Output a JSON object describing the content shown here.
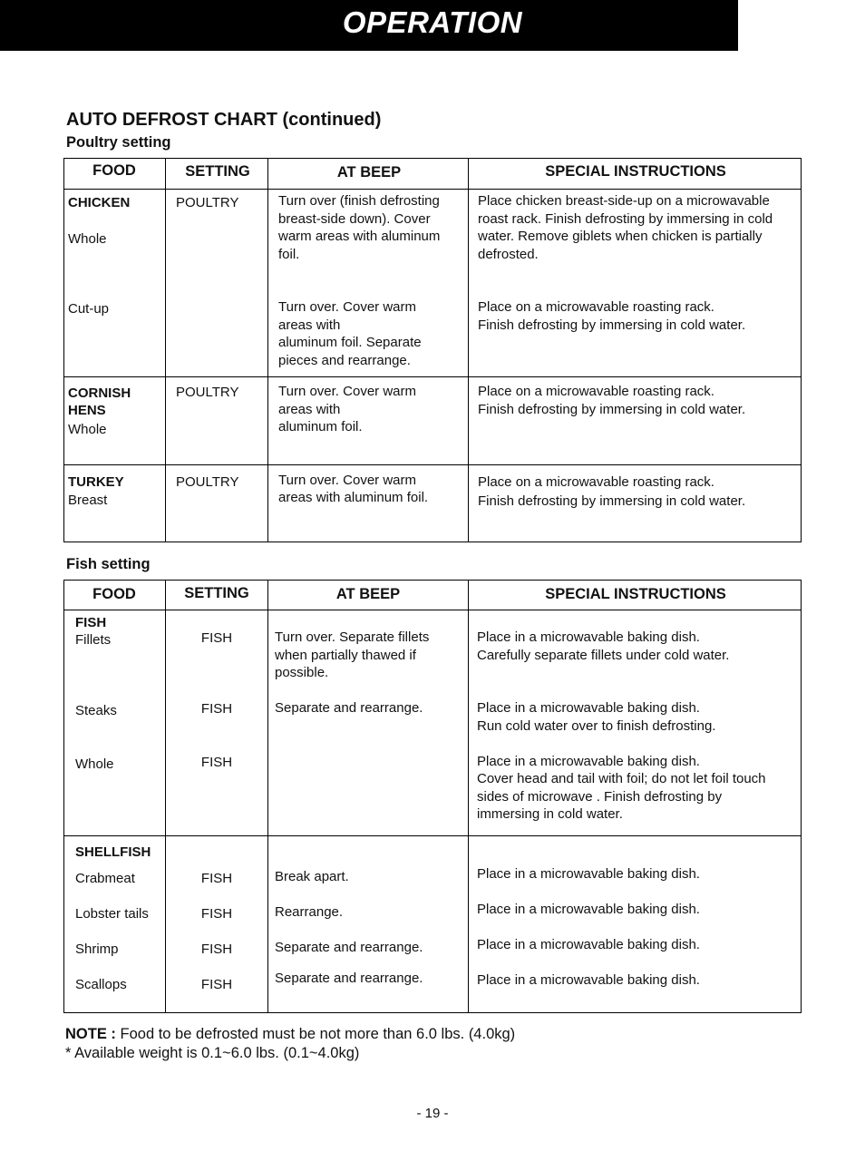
{
  "header": {
    "title": "OPERATION"
  },
  "section_title": "AUTO DEFROST CHART (continued)",
  "poultry": {
    "subtitle": "Poultry setting",
    "columns": [
      "FOOD",
      "SETTING",
      "AT BEEP",
      "SPECIAL INSTRUCTIONS"
    ],
    "chicken": {
      "name": "CHICKEN",
      "whole": "Whole",
      "cutup": "Cut-up",
      "setting": "POULTRY",
      "beep_whole": "Turn over (finish defrosting\nbreast-side down). Cover\nwarm areas with aluminum\nfoil.",
      "beep_cutup": "Turn over. Cover warm\nareas with\naluminum foil. Separate\npieces and rearrange.",
      "special_whole": "Place chicken breast-side-up on a microwavable\nroast rack. Finish defrosting by immersing in cold\nwater. Remove giblets when chicken is partially\ndefrosted.",
      "special_cutup": "Place on a microwavable roasting rack.\nFinish defrosting by immersing in cold water."
    },
    "cornish": {
      "name": "CORNISH\nHENS",
      "sub": "Whole",
      "setting": "POULTRY",
      "beep": "Turn over. Cover warm\nareas with\naluminum foil.",
      "special": "Place on a microwavable roasting rack.\nFinish defrosting by immersing in cold water."
    },
    "turkey": {
      "name": "TURKEY",
      "sub": "Breast",
      "setting": "POULTRY",
      "beep": "Turn over. Cover warm\nareas with aluminum foil.",
      "special": "Place on a microwavable roasting rack.\nFinish defrosting by immersing in cold water."
    }
  },
  "fish": {
    "subtitle": "Fish setting",
    "columns": [
      "FOOD",
      "SETTING",
      "AT BEEP",
      "SPECIAL INSTRUCTIONS"
    ],
    "fish_group": {
      "name": "FISH",
      "items": [
        {
          "food": "Fillets",
          "setting": "FISH",
          "beep": "Turn over. Separate fillets\nwhen partially thawed if\npossible.",
          "special": "Place in a microwavable baking dish.\nCarefully separate fillets under cold water."
        },
        {
          "food": "Steaks",
          "setting": "FISH",
          "beep": "Separate and rearrange.",
          "special": "Place in a microwavable baking dish.\nRun cold water over to finish defrosting."
        },
        {
          "food": "Whole",
          "setting": "FISH",
          "beep": "",
          "special": "Place in a microwavable baking dish.\nCover head and tail with foil; do not let foil touch\nsides of microwave . Finish defrosting by\nimmersing in cold water."
        }
      ]
    },
    "shellfish_group": {
      "name": "SHELLFISH",
      "items": [
        {
          "food": "Crabmeat",
          "setting": "FISH",
          "beep": "Break apart.",
          "special": "Place in a microwavable baking dish."
        },
        {
          "food": "Lobster tails",
          "setting": "FISH",
          "beep": "Rearrange.",
          "special": "Place in a microwavable baking dish."
        },
        {
          "food": "Shrimp",
          "setting": "FISH",
          "beep": "Separate and rearrange.",
          "special": "Place in a microwavable baking dish."
        },
        {
          "food": "Scallops",
          "setting": "FISH",
          "beep": "Separate and rearrange.",
          "special": "Place in a microwavable baking dish."
        }
      ]
    }
  },
  "note": {
    "label": "NOTE :",
    "text": " Food to be defrosted must be not more than 6.0 lbs. (4.0kg)",
    "line2": "* Available weight is 0.1~6.0 lbs. (0.1~4.0kg)"
  },
  "page_number": "- 19 -"
}
